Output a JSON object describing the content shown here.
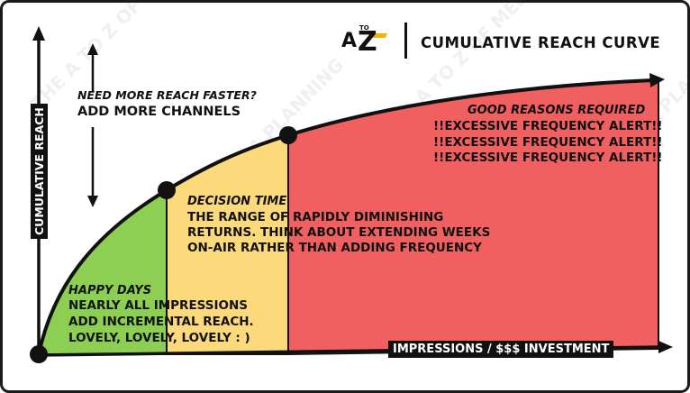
{
  "header": {
    "logo_letters": "A TO Z",
    "logo_a": "A",
    "logo_to": "TO",
    "logo_z": "Z",
    "title": "CUMULATIVE REACH CURVE"
  },
  "axes": {
    "y_label": "CUMULATIVE REACH",
    "x_label": "IMPRESSIONS / $$$ INVESTMENT"
  },
  "annotations": {
    "top_left": {
      "line1": "NEED MORE REACH FASTER?",
      "line2": "ADD MORE CHANNELS"
    },
    "happy_days": {
      "title": "HAPPY DAYS",
      "lines": [
        "NEARLY ALL IMPRESSIONS",
        "ADD INCREMENTAL REACH.",
        "LOVELY, LOVELY, LOVELY : )"
      ]
    },
    "decision_time": {
      "title": "DECISION TIME",
      "lines": [
        "THE RANGE OF RAPIDLY DIMINISHING",
        "RETURNS. THINK ABOUT EXTENDING WEEKS",
        "ON-AIR RATHER THAN ADDING FREQUENCY"
      ]
    },
    "good_reasons": {
      "title": "GOOD REASONS REQUIRED",
      "lines": [
        "!!EXCESSIVE FREQUENCY ALERT!!",
        "!!EXCESSIVE FREQUENCY ALERT!!",
        "!!EXCESSIVE FREQUENCY ALERT!!"
      ]
    }
  },
  "watermark": "THE A TO Z OF MEDIA PLANNING",
  "colors": {
    "zone_green": "#8ccf52",
    "zone_yellow": "#fcd97a",
    "zone_red": "#f06060",
    "logo_accent": "#f4b400",
    "ink": "#111111"
  }
}
